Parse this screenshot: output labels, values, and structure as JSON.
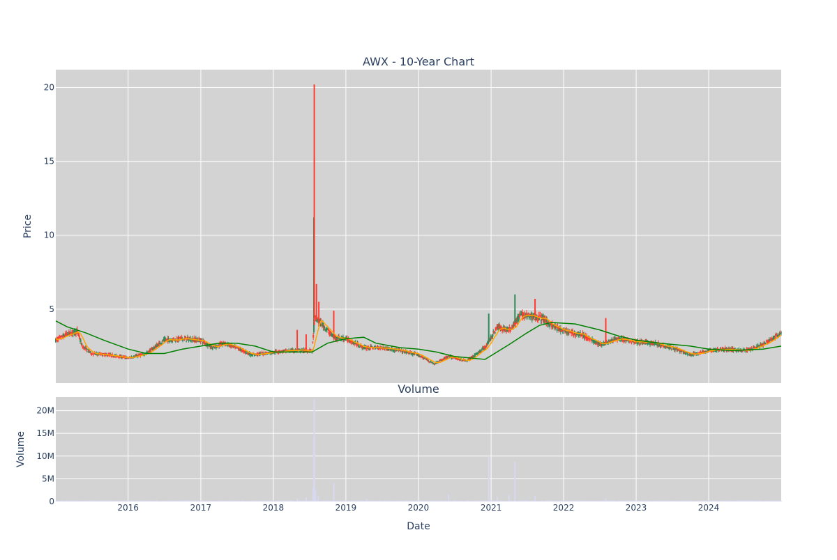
{
  "chart_data": [
    {
      "type": "candlestick",
      "title": "AWX - 10-Year Chart",
      "ylabel": "Price",
      "xlabel": "",
      "xlim": [
        "2015-01-02",
        "2024-12-31"
      ],
      "ylim": [
        0,
        21.2
      ],
      "y_ticks": [
        5,
        10,
        15,
        20
      ],
      "x_tick_labels": [
        "2016",
        "2017",
        "2018",
        "2019",
        "2020",
        "2021",
        "2022",
        "2023",
        "2024"
      ],
      "grid": true,
      "plot_bgcolor": "#d3d3d3",
      "colors": {
        "up": "#2e8b57",
        "down": "#ff3b30",
        "ma_short": "#ffa500",
        "ma_long": "#008000"
      },
      "close_trend": [
        [
          "2015-01-02",
          2.9
        ],
        [
          "2015-03-01",
          3.3
        ],
        [
          "2015-04-20",
          3.5
        ],
        [
          "2015-05-15",
          2.5
        ],
        [
          "2015-07-01",
          2.0
        ],
        [
          "2015-10-01",
          1.9
        ],
        [
          "2016-01-01",
          1.7
        ],
        [
          "2016-04-01",
          2.0
        ],
        [
          "2016-07-01",
          2.9
        ],
        [
          "2016-10-01",
          3.0
        ],
        [
          "2017-01-01",
          2.9
        ],
        [
          "2017-03-01",
          2.4
        ],
        [
          "2017-05-01",
          2.7
        ],
        [
          "2017-08-01",
          2.2
        ],
        [
          "2017-09-15",
          1.9
        ],
        [
          "2018-01-01",
          2.1
        ],
        [
          "2018-04-01",
          2.2
        ],
        [
          "2018-07-15",
          2.2
        ],
        [
          "2018-07-29",
          4.4
        ],
        [
          "2018-09-01",
          4.0
        ],
        [
          "2018-11-01",
          3.1
        ],
        [
          "2019-01-01",
          3.0
        ],
        [
          "2019-04-01",
          2.4
        ],
        [
          "2019-07-01",
          2.4
        ],
        [
          "2019-10-01",
          2.2
        ],
        [
          "2020-01-01",
          1.9
        ],
        [
          "2020-03-20",
          1.3
        ],
        [
          "2020-06-01",
          1.8
        ],
        [
          "2020-09-01",
          1.5
        ],
        [
          "2020-12-01",
          2.4
        ],
        [
          "2021-02-01",
          3.8
        ],
        [
          "2021-04-01",
          3.6
        ],
        [
          "2021-06-01",
          4.6
        ],
        [
          "2021-08-01",
          4.5
        ],
        [
          "2021-09-15",
          4.4
        ],
        [
          "2021-11-01",
          3.9
        ],
        [
          "2022-01-01",
          3.5
        ],
        [
          "2022-04-01",
          3.3
        ],
        [
          "2022-07-01",
          2.6
        ],
        [
          "2022-10-01",
          3.0
        ],
        [
          "2023-01-01",
          2.8
        ],
        [
          "2023-04-01",
          2.7
        ],
        [
          "2023-07-01",
          2.4
        ],
        [
          "2023-10-01",
          1.9
        ],
        [
          "2024-01-01",
          2.2
        ],
        [
          "2024-04-01",
          2.3
        ],
        [
          "2024-07-01",
          2.2
        ],
        [
          "2024-10-01",
          2.6
        ],
        [
          "2024-12-31",
          3.4
        ]
      ],
      "spikes": [
        {
          "date": "2018-05-01",
          "high": 3.6,
          "color": "down"
        },
        {
          "date": "2018-06-15",
          "high": 3.3,
          "color": "down"
        },
        {
          "date": "2018-07-24",
          "high": 11.2,
          "color": "up"
        },
        {
          "date": "2018-07-26",
          "high": 20.2,
          "color": "down"
        },
        {
          "date": "2018-08-06",
          "high": 6.7,
          "color": "down"
        },
        {
          "date": "2018-08-18",
          "high": 5.5,
          "color": "down"
        },
        {
          "date": "2018-11-01",
          "high": 4.9,
          "color": "down"
        },
        {
          "date": "2020-12-20",
          "high": 4.7,
          "color": "up"
        },
        {
          "date": "2021-05-01",
          "high": 6.0,
          "color": "up"
        },
        {
          "date": "2021-08-10",
          "high": 5.7,
          "color": "down"
        },
        {
          "date": "2022-08-01",
          "high": 4.4,
          "color": "down"
        }
      ],
      "ma_long": [
        [
          "2015-01-02",
          4.2
        ],
        [
          "2015-03-01",
          3.8
        ],
        [
          "2015-06-01",
          3.4
        ],
        [
          "2015-09-01",
          2.9
        ],
        [
          "2016-01-01",
          2.3
        ],
        [
          "2016-04-01",
          2.0
        ],
        [
          "2016-07-01",
          2.0
        ],
        [
          "2016-10-01",
          2.3
        ],
        [
          "2017-01-01",
          2.5
        ],
        [
          "2017-04-01",
          2.7
        ],
        [
          "2017-07-01",
          2.7
        ],
        [
          "2017-10-01",
          2.5
        ],
        [
          "2018-01-01",
          2.1
        ],
        [
          "2018-07-15",
          2.1
        ],
        [
          "2018-10-01",
          2.7
        ],
        [
          "2019-01-01",
          3.0
        ],
        [
          "2019-04-01",
          3.1
        ],
        [
          "2019-06-01",
          2.7
        ],
        [
          "2019-10-01",
          2.4
        ],
        [
          "2020-01-01",
          2.3
        ],
        [
          "2020-04-01",
          2.1
        ],
        [
          "2020-07-01",
          1.8
        ],
        [
          "2020-12-01",
          1.6
        ],
        [
          "2021-04-01",
          2.6
        ],
        [
          "2021-07-01",
          3.4
        ],
        [
          "2021-09-01",
          3.9
        ],
        [
          "2021-11-01",
          4.1
        ],
        [
          "2022-03-01",
          4.0
        ],
        [
          "2022-07-01",
          3.6
        ],
        [
          "2022-10-01",
          3.2
        ],
        [
          "2023-01-01",
          2.9
        ],
        [
          "2023-05-01",
          2.7
        ],
        [
          "2023-10-01",
          2.5
        ],
        [
          "2024-01-01",
          2.3
        ],
        [
          "2024-05-01",
          2.2
        ],
        [
          "2024-10-01",
          2.3
        ],
        [
          "2024-12-31",
          2.5
        ]
      ]
    },
    {
      "type": "bar",
      "title": "Volume",
      "xlabel": "Date",
      "ylabel": "Volume",
      "ylim": [
        0,
        23000000
      ],
      "y_ticks": [
        0,
        5000000,
        10000000,
        15000000,
        20000000
      ],
      "y_tick_labels": [
        "0",
        "5M",
        "10M",
        "15M",
        "20M"
      ],
      "x_tick_labels": [
        "2016",
        "2017",
        "2018",
        "2019",
        "2020",
        "2021",
        "2022",
        "2023",
        "2024"
      ],
      "grid": true,
      "plot_bgcolor": "#d3d3d3",
      "bar_color": "#d8d8f0",
      "notable_bars": [
        [
          "2018-05-01",
          700000
        ],
        [
          "2018-06-15",
          900000
        ],
        [
          "2018-07-20",
          3000000
        ],
        [
          "2018-07-24",
          14000000
        ],
        [
          "2018-07-26",
          22500000
        ],
        [
          "2018-08-01",
          2500000
        ],
        [
          "2018-08-15",
          1200000
        ],
        [
          "2018-11-01",
          4000000
        ],
        [
          "2019-04-15",
          600000
        ],
        [
          "2020-06-01",
          1500000
        ],
        [
          "2020-12-20",
          10000000
        ],
        [
          "2021-02-01",
          1000000
        ],
        [
          "2021-04-01",
          1500000
        ],
        [
          "2021-05-01",
          8800000
        ],
        [
          "2021-08-10",
          1300000
        ],
        [
          "2022-08-01",
          700000
        ]
      ]
    }
  ]
}
